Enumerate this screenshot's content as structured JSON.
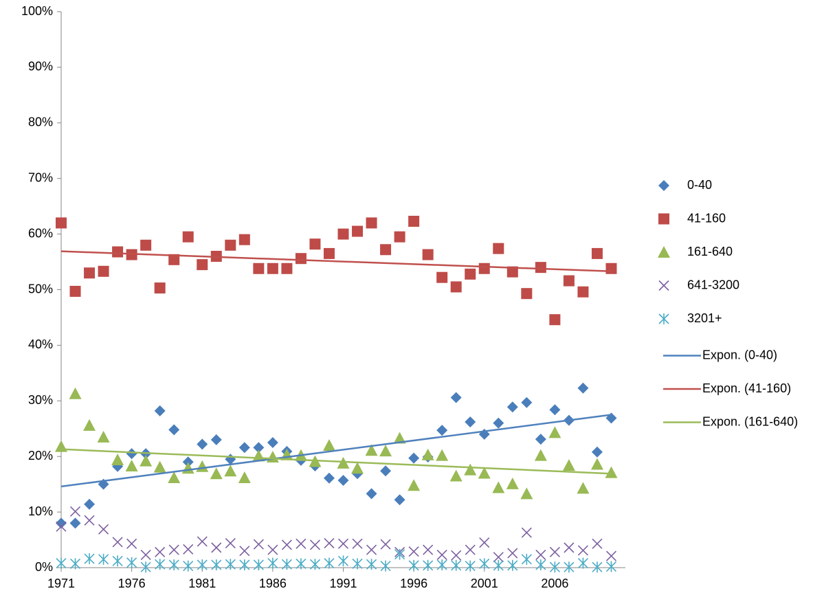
{
  "chart_data": {
    "type": "scatter",
    "x": [
      1971,
      1972,
      1973,
      1974,
      1975,
      1976,
      1977,
      1978,
      1979,
      1980,
      1981,
      1982,
      1983,
      1984,
      1985,
      1986,
      1987,
      1988,
      1989,
      1990,
      1991,
      1992,
      1993,
      1994,
      1995,
      1996,
      1997,
      1998,
      1999,
      2000,
      2001,
      2002,
      2003,
      2004,
      2005,
      2006,
      2007,
      2008,
      2009,
      2010
    ],
    "series": [
      {
        "name": "0-40",
        "color": "#4a7ebb",
        "marker": "diamond",
        "values": [
          8,
          8,
          11.4,
          15,
          18.2,
          20.5,
          20.5,
          28.2,
          24.8,
          19,
          22.2,
          23,
          19.5,
          21.6,
          21.6,
          22.5,
          20.9,
          19.3,
          18.3,
          16.1,
          15.7,
          16.9,
          13.3,
          17.4,
          12.2,
          19.7,
          19.9,
          24.7,
          30.6,
          26.2,
          24,
          26,
          28.9,
          29.7,
          23.1,
          28.4,
          26.5,
          32.3,
          20.8,
          26.9
        ]
      },
      {
        "name": "41-160",
        "color": "#be4b48",
        "marker": "square",
        "values": [
          62,
          49.7,
          53,
          53.3,
          56.8,
          56.3,
          58,
          50.3,
          55.4,
          59.5,
          54.5,
          56,
          58,
          59,
          53.8,
          53.8,
          53.8,
          55.6,
          58.2,
          56.5,
          60,
          60.5,
          62,
          57.2,
          59.5,
          62.3,
          56.3,
          52.2,
          50.5,
          52.8,
          53.8,
          57.4,
          53.2,
          49.3,
          54,
          44.6,
          51.6,
          49.6,
          56.5,
          53.8
        ]
      },
      {
        "name": "161-640",
        "color": "#98b954",
        "marker": "triangle",
        "values": [
          21.8,
          31.3,
          25.6,
          23.5,
          19.4,
          18.3,
          19.2,
          18.1,
          16.2,
          17.9,
          18.2,
          16.9,
          17.4,
          16.2,
          20.1,
          19.9,
          20.3,
          20.2,
          19.1,
          22,
          18.8,
          17.9,
          21.1,
          21,
          23.3,
          14.8,
          20.3,
          20.2,
          16.5,
          17.6,
          17,
          14.4,
          15.1,
          13.3,
          20.2,
          24.3,
          18.4,
          14.3,
          18.6,
          17.1
        ]
      },
      {
        "name": "641-3200",
        "color": "#7d60a0",
        "marker": "x",
        "values": [
          7.4,
          10.1,
          8.5,
          6.9,
          4.6,
          4.3,
          2.3,
          2.8,
          3.2,
          3.3,
          4.7,
          3.6,
          4.4,
          3,
          4.2,
          3.2,
          4.1,
          4.3,
          4.1,
          4.4,
          4.3,
          4.3,
          3.2,
          4.2,
          2.8,
          2.9,
          3.2,
          2.3,
          2.2,
          3.2,
          4.5,
          1.9,
          2.6,
          6.3,
          2.3,
          2.8,
          3.6,
          3.1,
          4.3,
          2.1
        ]
      },
      {
        "name": "3201+",
        "color": "#4bacc6",
        "marker": "star",
        "values": [
          0.8,
          0.7,
          1.6,
          1.5,
          1.2,
          0.9,
          0.1,
          0.6,
          0.5,
          0.3,
          0.5,
          0.5,
          0.6,
          0.5,
          0.5,
          0.8,
          0.6,
          0.7,
          0.6,
          0.8,
          1.2,
          0.7,
          0.6,
          0.3,
          2.4,
          0.4,
          0.4,
          0.5,
          0.4,
          0.3,
          0.7,
          0.4,
          0.4,
          1.5,
          0.5,
          0.1,
          0.1,
          0.8,
          0.1,
          0.2
        ]
      }
    ],
    "trendlines": [
      {
        "name": "Expon. (0-40)",
        "color": "#4f81bd",
        "x": [
          1971,
          2010
        ],
        "values": [
          14.6,
          27.5
        ]
      },
      {
        "name": "Expon. (41-160)",
        "color": "#c0504d",
        "x": [
          1971,
          2010
        ],
        "values": [
          56.9,
          53.3
        ]
      },
      {
        "name": "Expon. (161-640)",
        "color": "#9bbb59",
        "x": [
          1971,
          2010
        ],
        "values": [
          21.3,
          16.9
        ]
      }
    ],
    "xlim": [
      1971,
      2011
    ],
    "xticks": [
      1971,
      1976,
      1981,
      1986,
      1991,
      1996,
      2001,
      2006
    ],
    "ylim": [
      0,
      100
    ],
    "yticks": [
      {
        "value": 0,
        "label": "0%"
      },
      {
        "value": 10,
        "label": "10%"
      },
      {
        "value": 20,
        "label": "20%"
      },
      {
        "value": 30,
        "label": "30%"
      },
      {
        "value": 40,
        "label": "40%"
      },
      {
        "value": 50,
        "label": "50%"
      },
      {
        "value": 60,
        "label": "60%"
      },
      {
        "value": 70,
        "label": "70%"
      },
      {
        "value": 80,
        "label": "80%"
      },
      {
        "value": 90,
        "label": "90%"
      },
      {
        "value": 100,
        "label": "100%"
      }
    ],
    "grid": false,
    "legend": "right"
  }
}
